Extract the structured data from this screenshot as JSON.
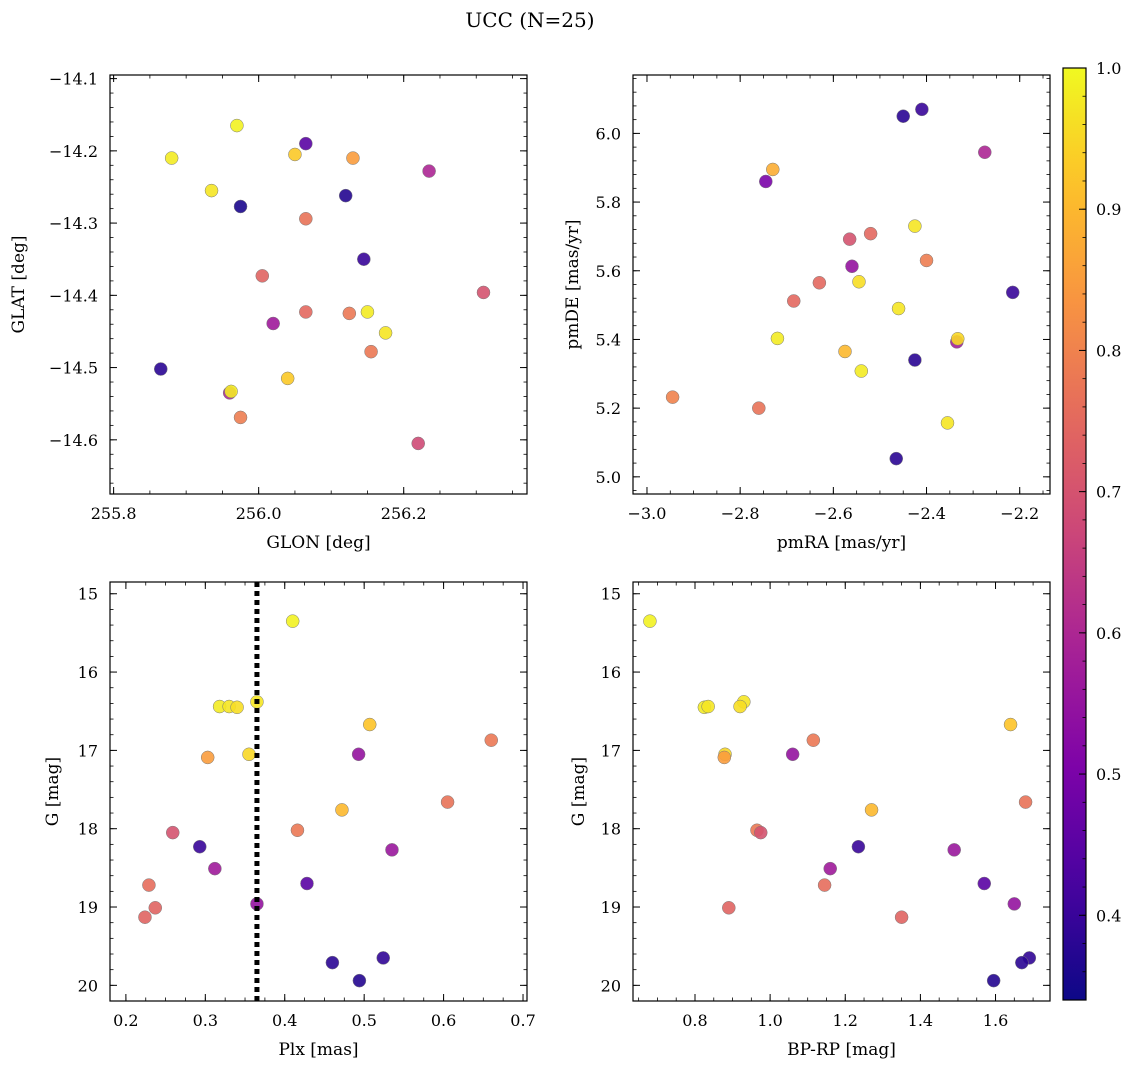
{
  "figure_title": "UCC (N=25)",
  "colorbar": {
    "colormap": "plasma",
    "range": [
      0.34,
      1.0
    ],
    "ticks": [
      0.4,
      0.5,
      0.6,
      0.7,
      0.8,
      0.9,
      1.0
    ],
    "tick_labels": [
      "0.4",
      "0.5",
      "0.6",
      "0.7",
      "0.8",
      "0.9",
      "1.0"
    ]
  },
  "chart_data": [
    {
      "type": "scatter",
      "xlabel": "GLON [deg]",
      "ylabel": "GLAT [deg]",
      "xlim": [
        255.795,
        256.37
      ],
      "ylim": [
        -14.675,
        -14.095
      ],
      "xticks": [
        255.8,
        256.0,
        256.2
      ],
      "xtick_labels": [
        "255.8",
        "256.0",
        "256.2"
      ],
      "yticks": [
        -14.6,
        -14.5,
        -14.4,
        -14.3,
        -14.2,
        -14.1
      ],
      "ytick_labels": [
        "−14.6",
        "−14.5",
        "−14.4",
        "−14.3",
        "−14.2",
        "−14.1"
      ],
      "points": [
        {
          "x": 255.88,
          "y": -14.21,
          "c": 0.98
        },
        {
          "x": 255.97,
          "y": -14.165,
          "c": 0.99
        },
        {
          "x": 255.935,
          "y": -14.255,
          "c": 0.97
        },
        {
          "x": 255.975,
          "y": -14.277,
          "c": 0.36
        },
        {
          "x": 256.065,
          "y": -14.19,
          "c": 0.45
        },
        {
          "x": 256.05,
          "y": -14.205,
          "c": 0.93
        },
        {
          "x": 256.13,
          "y": -14.21,
          "c": 0.85
        },
        {
          "x": 256.235,
          "y": -14.228,
          "c": 0.6
        },
        {
          "x": 256.12,
          "y": -14.262,
          "c": 0.37
        },
        {
          "x": 256.065,
          "y": -14.294,
          "c": 0.77
        },
        {
          "x": 256.145,
          "y": -14.35,
          "c": 0.4
        },
        {
          "x": 256.005,
          "y": -14.373,
          "c": 0.74
        },
        {
          "x": 256.31,
          "y": -14.396,
          "c": 0.7
        },
        {
          "x": 256.065,
          "y": -14.423,
          "c": 0.75
        },
        {
          "x": 256.125,
          "y": -14.425,
          "c": 0.78
        },
        {
          "x": 256.15,
          "y": -14.423,
          "c": 0.98
        },
        {
          "x": 256.175,
          "y": -14.452,
          "c": 0.97
        },
        {
          "x": 256.02,
          "y": -14.439,
          "c": 0.57
        },
        {
          "x": 256.155,
          "y": -14.478,
          "c": 0.78
        },
        {
          "x": 255.865,
          "y": -14.502,
          "c": 0.38
        },
        {
          "x": 256.04,
          "y": -14.515,
          "c": 0.93
        },
        {
          "x": 255.96,
          "y": -14.535,
          "c": 0.6
        },
        {
          "x": 255.962,
          "y": -14.533,
          "c": 0.98
        },
        {
          "x": 255.975,
          "y": -14.569,
          "c": 0.79
        },
        {
          "x": 256.22,
          "y": -14.605,
          "c": 0.68
        }
      ]
    },
    {
      "type": "scatter",
      "xlabel": "pmRA [mas/yr]",
      "ylabel": "pmDE [mas/yr]",
      "xlim": [
        -3.03,
        -2.135
      ],
      "ylim": [
        4.95,
        6.17
      ],
      "xticks": [
        -3.0,
        -2.8,
        -2.6,
        -2.4,
        -2.2
      ],
      "xtick_labels": [
        "−3.0",
        "−2.8",
        "−2.6",
        "−2.4",
        "−2.2"
      ],
      "yticks": [
        5.0,
        5.2,
        5.4,
        5.6,
        5.8,
        6.0
      ],
      "ytick_labels": [
        "5.0",
        "5.2",
        "5.4",
        "5.6",
        "5.8",
        "6.0"
      ],
      "points": [
        {
          "x": -2.41,
          "y": 6.07,
          "c": 0.4
        },
        {
          "x": -2.45,
          "y": 6.05,
          "c": 0.38
        },
        {
          "x": -2.275,
          "y": 5.945,
          "c": 0.6
        },
        {
          "x": -2.73,
          "y": 5.895,
          "c": 0.88
        },
        {
          "x": -2.745,
          "y": 5.86,
          "c": 0.5
        },
        {
          "x": -2.425,
          "y": 5.73,
          "c": 0.97
        },
        {
          "x": -2.52,
          "y": 5.708,
          "c": 0.75
        },
        {
          "x": -2.565,
          "y": 5.692,
          "c": 0.7
        },
        {
          "x": -2.4,
          "y": 5.63,
          "c": 0.79
        },
        {
          "x": -2.56,
          "y": 5.613,
          "c": 0.55
        },
        {
          "x": -2.63,
          "y": 5.565,
          "c": 0.75
        },
        {
          "x": -2.545,
          "y": 5.568,
          "c": 0.96
        },
        {
          "x": -2.215,
          "y": 5.537,
          "c": 0.4
        },
        {
          "x": -2.685,
          "y": 5.512,
          "c": 0.75
        },
        {
          "x": -2.46,
          "y": 5.49,
          "c": 0.97
        },
        {
          "x": -2.72,
          "y": 5.403,
          "c": 0.98
        },
        {
          "x": -2.335,
          "y": 5.393,
          "c": 0.58
        },
        {
          "x": -2.333,
          "y": 5.402,
          "c": 0.95
        },
        {
          "x": -2.575,
          "y": 5.365,
          "c": 0.9
        },
        {
          "x": -2.425,
          "y": 5.34,
          "c": 0.38
        },
        {
          "x": -2.54,
          "y": 5.308,
          "c": 0.98
        },
        {
          "x": -2.945,
          "y": 5.232,
          "c": 0.8
        },
        {
          "x": -2.76,
          "y": 5.2,
          "c": 0.77
        },
        {
          "x": -2.355,
          "y": 5.157,
          "c": 0.97
        },
        {
          "x": -2.465,
          "y": 5.053,
          "c": 0.38
        }
      ]
    },
    {
      "type": "scatter",
      "xlabel": "Plx [mas]",
      "ylabel": "G [mag]",
      "xlim": [
        0.18,
        0.705
      ],
      "ylim": [
        20.2,
        14.85
      ],
      "y_inverted": true,
      "xticks": [
        0.2,
        0.3,
        0.4,
        0.5,
        0.6,
        0.7
      ],
      "xtick_labels": [
        "0.2",
        "0.3",
        "0.4",
        "0.5",
        "0.6",
        "0.7"
      ],
      "yticks": [
        15,
        16,
        17,
        18,
        19,
        20
      ],
      "ytick_labels": [
        "15",
        "16",
        "17",
        "18",
        "19",
        "20"
      ],
      "vline": {
        "x": 0.365,
        "style": "dotted",
        "color": "#000000"
      },
      "points": [
        {
          "x": 0.41,
          "y": 15.35,
          "c": 0.99
        },
        {
          "x": 0.365,
          "y": 16.38,
          "c": 0.97
        },
        {
          "x": 0.318,
          "y": 16.44,
          "c": 0.98
        },
        {
          "x": 0.33,
          "y": 16.44,
          "c": 0.97
        },
        {
          "x": 0.34,
          "y": 16.45,
          "c": 0.96
        },
        {
          "x": 0.507,
          "y": 16.67,
          "c": 0.92
        },
        {
          "x": 0.66,
          "y": 16.87,
          "c": 0.78
        },
        {
          "x": 0.493,
          "y": 17.05,
          "c": 0.55
        },
        {
          "x": 0.355,
          "y": 17.05,
          "c": 0.95
        },
        {
          "x": 0.303,
          "y": 17.09,
          "c": 0.85
        },
        {
          "x": 0.605,
          "y": 17.66,
          "c": 0.77
        },
        {
          "x": 0.472,
          "y": 17.76,
          "c": 0.9
        },
        {
          "x": 0.416,
          "y": 18.02,
          "c": 0.78
        },
        {
          "x": 0.259,
          "y": 18.05,
          "c": 0.7
        },
        {
          "x": 0.293,
          "y": 18.23,
          "c": 0.4
        },
        {
          "x": 0.535,
          "y": 18.27,
          "c": 0.56
        },
        {
          "x": 0.312,
          "y": 18.51,
          "c": 0.57
        },
        {
          "x": 0.428,
          "y": 18.7,
          "c": 0.45
        },
        {
          "x": 0.229,
          "y": 18.72,
          "c": 0.76
        },
        {
          "x": 0.237,
          "y": 19.01,
          "c": 0.74
        },
        {
          "x": 0.365,
          "y": 18.96,
          "c": 0.55
        },
        {
          "x": 0.224,
          "y": 19.13,
          "c": 0.74
        },
        {
          "x": 0.524,
          "y": 19.65,
          "c": 0.39
        },
        {
          "x": 0.46,
          "y": 19.71,
          "c": 0.38
        },
        {
          "x": 0.494,
          "y": 19.94,
          "c": 0.37
        }
      ]
    },
    {
      "type": "scatter",
      "xlabel": "BP-RP [mag]",
      "ylabel": "G [mag]",
      "xlim": [
        0.635,
        1.745
      ],
      "ylim": [
        20.2,
        14.85
      ],
      "y_inverted": true,
      "xticks": [
        0.8,
        1.0,
        1.2,
        1.4,
        1.6
      ],
      "xtick_labels": [
        "0.8",
        "1.0",
        "1.2",
        "1.4",
        "1.6"
      ],
      "yticks": [
        15,
        16,
        17,
        18,
        19,
        20
      ],
      "ytick_labels": [
        "15",
        "16",
        "17",
        "18",
        "19",
        "20"
      ],
      "points": [
        {
          "x": 0.68,
          "y": 15.35,
          "c": 0.99
        },
        {
          "x": 0.93,
          "y": 16.38,
          "c": 0.97
        },
        {
          "x": 0.825,
          "y": 16.45,
          "c": 0.98
        },
        {
          "x": 0.835,
          "y": 16.44,
          "c": 0.97
        },
        {
          "x": 0.92,
          "y": 16.44,
          "c": 0.96
        },
        {
          "x": 1.64,
          "y": 16.67,
          "c": 0.92
        },
        {
          "x": 1.115,
          "y": 16.87,
          "c": 0.78
        },
        {
          "x": 1.06,
          "y": 17.05,
          "c": 0.55
        },
        {
          "x": 0.88,
          "y": 17.05,
          "c": 0.95
        },
        {
          "x": 0.878,
          "y": 17.09,
          "c": 0.85
        },
        {
          "x": 1.68,
          "y": 17.66,
          "c": 0.77
        },
        {
          "x": 1.27,
          "y": 17.76,
          "c": 0.9
        },
        {
          "x": 0.965,
          "y": 18.02,
          "c": 0.78
        },
        {
          "x": 0.975,
          "y": 18.05,
          "c": 0.7
        },
        {
          "x": 1.235,
          "y": 18.23,
          "c": 0.4
        },
        {
          "x": 1.49,
          "y": 18.27,
          "c": 0.56
        },
        {
          "x": 1.16,
          "y": 18.51,
          "c": 0.57
        },
        {
          "x": 1.57,
          "y": 18.7,
          "c": 0.45
        },
        {
          "x": 1.145,
          "y": 18.72,
          "c": 0.76
        },
        {
          "x": 0.89,
          "y": 19.01,
          "c": 0.74
        },
        {
          "x": 1.65,
          "y": 18.96,
          "c": 0.55
        },
        {
          "x": 1.35,
          "y": 19.13,
          "c": 0.74
        },
        {
          "x": 1.69,
          "y": 19.65,
          "c": 0.39
        },
        {
          "x": 1.67,
          "y": 19.71,
          "c": 0.38
        },
        {
          "x": 1.595,
          "y": 19.94,
          "c": 0.37
        }
      ]
    }
  ]
}
